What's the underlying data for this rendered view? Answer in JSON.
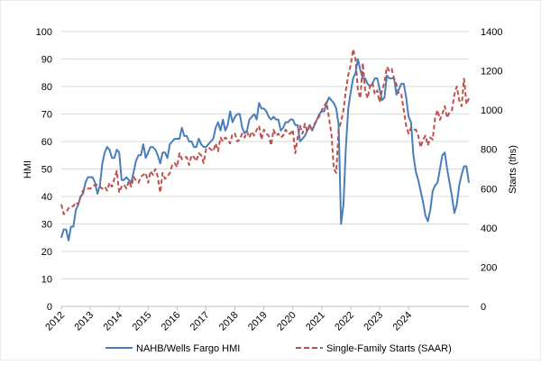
{
  "chart_data": {
    "type": "line",
    "title": "",
    "xlabel": "",
    "ylabel_left": "HMI",
    "ylabel_right": "Starts (ths)",
    "x_ticks": [
      "2012",
      "2013",
      "2014",
      "2015",
      "2016",
      "2017",
      "2018",
      "2019",
      "2020",
      "2021",
      "2022",
      "2023",
      "2024"
    ],
    "ylim_left": [
      0,
      100
    ],
    "yticks_left": [
      0,
      10,
      20,
      30,
      40,
      50,
      60,
      70,
      80,
      90,
      100
    ],
    "ylim_right": [
      0,
      1400
    ],
    "yticks_right": [
      0,
      200,
      400,
      600,
      800,
      1000,
      1200,
      1400
    ],
    "grid": "horizontal",
    "legend_position": "bottom",
    "x_start": "2012-01",
    "series": [
      {
        "name": "NAHB/Wells Fargo HMI",
        "axis": "left",
        "color": "#4a7ebb",
        "style": "solid",
        "values": [
          25,
          28,
          28,
          24,
          29,
          29,
          35,
          37,
          40,
          41,
          45,
          47,
          47,
          47,
          45,
          41,
          44,
          52,
          56,
          58,
          57,
          54,
          54,
          57,
          56,
          46,
          46,
          47,
          46,
          45,
          49,
          53,
          55,
          55,
          59,
          54,
          56,
          58,
          58,
          57,
          55,
          52,
          56,
          56,
          54,
          59,
          60,
          61,
          61,
          61,
          65,
          62,
          62,
          60,
          60,
          58,
          58,
          61,
          59,
          58,
          58,
          59,
          60,
          61,
          65,
          67,
          64,
          68,
          64,
          66,
          71,
          67,
          69,
          70,
          70,
          65,
          63,
          64,
          68,
          69,
          70,
          68,
          74,
          72,
          72,
          71,
          69,
          68,
          69,
          68,
          68,
          64,
          65,
          67,
          67,
          68,
          68,
          66,
          66,
          60,
          61,
          62,
          64,
          66,
          64,
          66,
          68,
          70,
          71,
          71,
          74,
          76,
          75,
          74,
          72,
          66,
          30,
          37,
          58,
          72,
          78,
          83,
          85,
          90,
          86,
          83,
          83,
          81,
          80,
          81,
          83,
          83,
          79,
          75,
          76,
          84,
          83,
          83,
          83,
          77,
          79,
          81,
          81,
          76,
          69,
          67,
          55,
          49,
          46,
          42,
          38,
          33,
          31,
          35,
          42,
          44,
          45,
          50,
          55,
          56,
          50,
          45,
          40,
          34,
          37,
          44,
          48,
          51,
          51,
          45
        ]
      },
      {
        "name": "Single-Family Starts (SAAR)",
        "axis": "right",
        "color": "#c0504d",
        "style": "dashed",
        "values": [
          520,
          470,
          480,
          500,
          510,
          510,
          530,
          520,
          560,
          590,
          600,
          600,
          600,
          610,
          620,
          620,
          610,
          600,
          610,
          590,
          630,
          610,
          650,
          690,
          580,
          610,
          620,
          600,
          640,
          610,
          660,
          640,
          630,
          660,
          670,
          680,
          630,
          690,
          670,
          700,
          660,
          580,
          680,
          650,
          660,
          680,
          720,
          730,
          710,
          780,
          750,
          760,
          760,
          720,
          770,
          760,
          740,
          780,
          770,
          730,
          800,
          810,
          800,
          790,
          830,
          790,
          860,
          840,
          860,
          850,
          830,
          880,
          880,
          840,
          850,
          880,
          860,
          890,
          860,
          890,
          870,
          900,
          920,
          850,
          900,
          880,
          870,
          820,
          900,
          870,
          880,
          860,
          870,
          900,
          880,
          880,
          900,
          780,
          860,
          920,
          880,
          930,
          890,
          920,
          900,
          930,
          950,
          970,
          1000,
          1020,
          1040,
          960,
          880,
          700,
          680,
          900,
          940,
          1000,
          1100,
          1180,
          1230,
          1310,
          1260,
          1100,
          1060,
          1240,
          1100,
          1060,
          1120,
          1140,
          1080,
          1100,
          1040,
          1100,
          1140,
          1220,
          1200,
          1210,
          1160,
          1130,
          1080,
          1080,
          1000,
          920,
          880,
          910,
          900,
          900,
          870,
          810,
          850,
          870,
          820,
          860,
          850,
          960,
          1000,
          950,
          980,
          1020,
          960,
          990,
          1000,
          1080,
          1120,
          1050,
          1020,
          1160,
          1030,
          1060
        ]
      }
    ]
  }
}
